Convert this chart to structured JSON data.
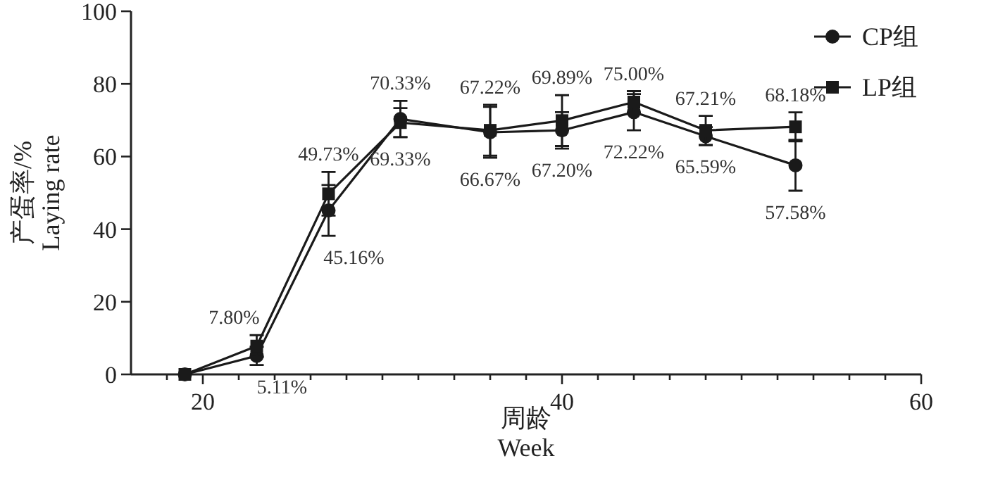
{
  "chart_data": {
    "type": "line",
    "xlabel": "周龄\nWeek",
    "ylabel": "产蛋率/%\nLaying rate",
    "x": [
      19,
      23,
      27,
      31,
      36,
      40,
      44,
      48,
      53
    ],
    "series": [
      {
        "name": "CP组",
        "color": "#1a1a1a",
        "marker": "circle",
        "values": [
          0,
          5.11,
          45.16,
          70.33,
          66.67,
          67.2,
          72.22,
          65.59,
          57.58
        ],
        "errors": [
          null,
          2.5,
          7,
          5,
          7,
          5,
          5,
          2.5,
          7
        ],
        "value_labels": [
          null,
          "5.11%",
          "45.16%",
          "70.33%",
          "66.67%",
          "67.20%",
          "72.22%",
          "65.59%",
          "57.58%"
        ]
      },
      {
        "name": "LP组",
        "color": "#1a1a1a",
        "marker": "square",
        "values": [
          0,
          7.8,
          49.73,
          69.33,
          67.22,
          69.89,
          75.0,
          67.21,
          68.18
        ],
        "errors": [
          null,
          3,
          6,
          4,
          7,
          7,
          3,
          4,
          4
        ],
        "value_labels": [
          null,
          "7.80%",
          "49.73%",
          "69.33%",
          "67.22%",
          "69.89%",
          "75.00%",
          "67.21%",
          "68.18%"
        ]
      }
    ],
    "xlim": [
      16,
      60
    ],
    "xticks": [
      {
        "value": 18,
        "label": null
      },
      20,
      {
        "value": 22,
        "label": null
      },
      {
        "value": 24,
        "label": null
      },
      {
        "value": 26,
        "label": null
      },
      {
        "value": 28,
        "label": null
      },
      {
        "value": 30,
        "label": null
      },
      {
        "value": 32,
        "label": null
      },
      {
        "value": 34,
        "label": null
      },
      {
        "value": 36,
        "label": null
      },
      {
        "value": 38,
        "label": null
      },
      40,
      {
        "value": 42,
        "label": null
      },
      {
        "value": 44,
        "label": null
      },
      {
        "value": 46,
        "label": null
      },
      {
        "value": 48,
        "label": null
      },
      {
        "value": 50,
        "label": null
      },
      {
        "value": 52,
        "label": null
      },
      {
        "value": 54,
        "label": null
      },
      {
        "value": 56,
        "label": null
      },
      {
        "value": 58,
        "label": null
      },
      60
    ],
    "ylim": [
      0,
      100
    ],
    "yticks": [
      0,
      20,
      40,
      60,
      80,
      100
    ],
    "grid": false,
    "legend": "top right",
    "line_style": "solid"
  }
}
